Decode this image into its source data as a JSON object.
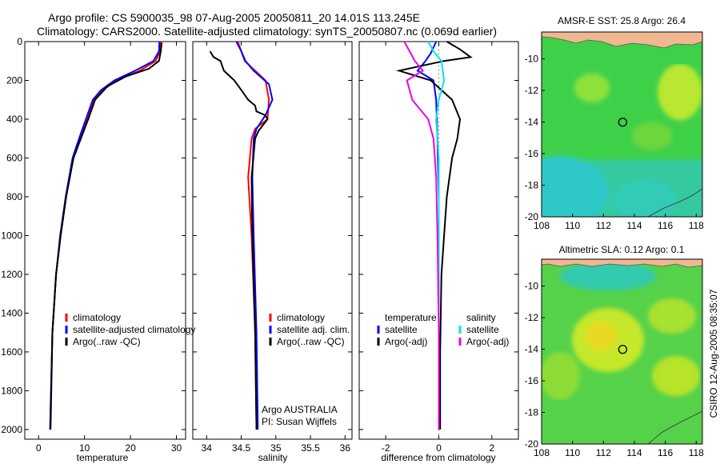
{
  "header": {
    "line1": "Argo profile: CS 5900035_98 07-Aug-2005 20050811_20 14.01S 113.245E",
    "line2": "Climatology: CARS2000. Satellite-adjusted climatology: synTS_20050807.nc (0.069d earlier)"
  },
  "footer": {
    "stamp": "CSIRO 12-Aug-2005 08:35:07"
  },
  "colors": {
    "climatology": "#ff0000",
    "satellite": "#0000ff",
    "argo": "#000000",
    "sat_diff": "#00e5ee",
    "argo_adj": "#ee00ee"
  },
  "chart_data": [
    {
      "id": "temperature",
      "type": "line",
      "xlabel": "temperature",
      "xlim": [
        -3,
        32
      ],
      "xticks": [
        0,
        10,
        20,
        30
      ],
      "ylim": [
        0,
        2050
      ],
      "yticks": [
        0,
        200,
        400,
        600,
        800,
        1000,
        1200,
        1400,
        1600,
        1800,
        2000
      ],
      "yreversed": true,
      "legend": [
        "climatology",
        "satellite-adjusted climatology",
        "Argo(..raw -QC)"
      ],
      "series": [
        {
          "name": "climatology",
          "color": "#ff0000",
          "x": [
            26.5,
            26.4,
            25.5,
            22,
            17,
            14,
            12,
            10.5,
            9,
            7.5,
            6,
            4.8,
            3.8,
            3.0,
            2.5
          ],
          "y": [
            0,
            50,
            100,
            150,
            200,
            250,
            300,
            400,
            500,
            600,
            800,
            1000,
            1200,
            1500,
            2000
          ]
        },
        {
          "name": "satellite-adjusted climatology",
          "color": "#0000ff",
          "x": [
            26.3,
            26.2,
            25,
            21,
            16.5,
            13.6,
            11.8,
            10.3,
            8.8,
            7.4,
            5.9,
            4.7,
            3.8,
            3.0,
            2.5
          ],
          "y": [
            0,
            50,
            100,
            150,
            200,
            250,
            300,
            400,
            500,
            600,
            800,
            1000,
            1200,
            1500,
            2000
          ]
        },
        {
          "name": "Argo(..raw -QC)",
          "color": "#000000",
          "x": [
            26.8,
            26.6,
            26.2,
            24,
            19,
            15,
            12.3,
            10.8,
            9.2,
            7.6,
            6.0,
            4.8,
            3.8,
            3.0,
            2.6
          ],
          "y": [
            5,
            50,
            100,
            140,
            180,
            230,
            300,
            400,
            500,
            600,
            800,
            1000,
            1200,
            1500,
            2000
          ]
        }
      ]
    },
    {
      "id": "salinity",
      "type": "line",
      "xlabel": "salinity",
      "xlim": [
        33.8,
        36.1
      ],
      "xticks": [
        34,
        34.5,
        35,
        35.5,
        36
      ],
      "xticklabels": [
        "34",
        "34.5",
        "35",
        "35.5",
        "36"
      ],
      "ylim": [
        0,
        2050
      ],
      "yreversed": true,
      "legend": [
        "climatology",
        "satellite adj. clim.",
        "Argo(..raw -QC)"
      ],
      "annotations": [
        "Argo AUSTRALIA",
        "PI: Susan Wijffels"
      ],
      "series": [
        {
          "name": "climatology",
          "color": "#ff0000",
          "x": [
            34.45,
            34.5,
            34.55,
            34.7,
            34.85,
            34.9,
            34.88,
            34.7,
            34.65,
            34.6,
            34.65,
            34.7,
            34.72
          ],
          "y": [
            0,
            50,
            100,
            150,
            200,
            300,
            400,
            450,
            500,
            700,
            1000,
            1500,
            2000
          ]
        },
        {
          "name": "satellite adj. clim.",
          "color": "#0000ff",
          "x": [
            34.43,
            34.5,
            34.56,
            34.68,
            34.9,
            34.95,
            34.85,
            34.72,
            34.68,
            34.66,
            34.68,
            34.72,
            34.74
          ],
          "y": [
            0,
            50,
            100,
            150,
            220,
            300,
            380,
            450,
            500,
            700,
            1000,
            1500,
            2000
          ]
        },
        {
          "name": "Argo(..raw -QC)",
          "color": "#000000",
          "x": [
            34.05,
            34.1,
            34.2,
            34.25,
            34.4,
            34.5,
            34.6,
            34.7,
            34.72,
            34.85,
            34.88,
            34.75,
            34.7,
            34.65,
            34.66,
            34.7,
            34.72
          ],
          "y": [
            50,
            80,
            100,
            150,
            200,
            250,
            300,
            330,
            360,
            380,
            400,
            460,
            500,
            700,
            1000,
            1500,
            2000
          ]
        }
      ]
    },
    {
      "id": "difference",
      "type": "line",
      "xlabel": "difference from climatology",
      "xlim": [
        -3,
        3
      ],
      "xticks": [
        -2,
        0,
        2
      ],
      "ylim": [
        0,
        2050
      ],
      "yreversed": true,
      "legend_titles": [
        "temperature",
        "salinity"
      ],
      "legend": [
        "satellite",
        "Argo(-adj)",
        "satellite",
        "Argo(-adj)"
      ],
      "series": [
        {
          "name": "temperature satellite",
          "color": "#0000ff",
          "x": [
            -0.1,
            -0.3,
            -0.5,
            -0.8,
            -0.2,
            -0.1,
            -0.05,
            0,
            0,
            0
          ],
          "y": [
            0,
            60,
            100,
            150,
            200,
            300,
            500,
            800,
            1200,
            2000
          ]
        },
        {
          "name": "temperature Argo(-adj)",
          "color": "#000000",
          "x": [
            0.3,
            0.8,
            1.2,
            0.2,
            -1.5,
            -0.3,
            0.5,
            0.8,
            0.7,
            0.5,
            0.3,
            0.2,
            0.1,
            0.05,
            0.05
          ],
          "y": [
            0,
            40,
            80,
            100,
            150,
            200,
            300,
            400,
            500,
            600,
            800,
            1000,
            1200,
            1600,
            2000
          ]
        },
        {
          "name": "salinity satellite",
          "color": "#00e5ee",
          "x": [
            -0.4,
            -0.2,
            0.1,
            0.2,
            0,
            -0.1,
            0,
            0,
            0,
            0
          ],
          "y": [
            0,
            50,
            100,
            200,
            300,
            400,
            600,
            1000,
            1500,
            2000
          ]
        },
        {
          "name": "salinity Argo(-adj)",
          "color": "#ee00ee",
          "x": [
            -1.3,
            -1.1,
            -0.9,
            -0.6,
            -1.2,
            -1.0,
            -0.4,
            -0.2,
            -0.1,
            -0.05,
            0,
            0
          ],
          "y": [
            0,
            50,
            100,
            150,
            200,
            300,
            400,
            500,
            700,
            1000,
            1500,
            2000
          ]
        }
      ]
    },
    {
      "id": "sst-map",
      "type": "heatmap",
      "title": "AMSR-E SST: 25.8  Argo: 26.4",
      "xlim": [
        108,
        118.4
      ],
      "xticks": [
        108,
        110,
        112,
        114,
        116,
        118
      ],
      "ylim": [
        -20,
        -8.3
      ],
      "yticks": [
        -10,
        -12,
        -14,
        -16,
        -18,
        -20
      ],
      "marker": {
        "lon": 113.245,
        "lat": -14.01
      }
    },
    {
      "id": "sla-map",
      "type": "heatmap",
      "title": "Altimetric SLA: 0.12  Argo: 0.1",
      "xlim": [
        108,
        118.4
      ],
      "xticks": [
        108,
        110,
        112,
        114,
        116,
        118
      ],
      "ylim": [
        -20,
        -8.3
      ],
      "yticks": [
        -10,
        -12,
        -14,
        -16,
        -18,
        -20
      ],
      "marker": {
        "lon": 113.245,
        "lat": -14.01
      }
    }
  ]
}
